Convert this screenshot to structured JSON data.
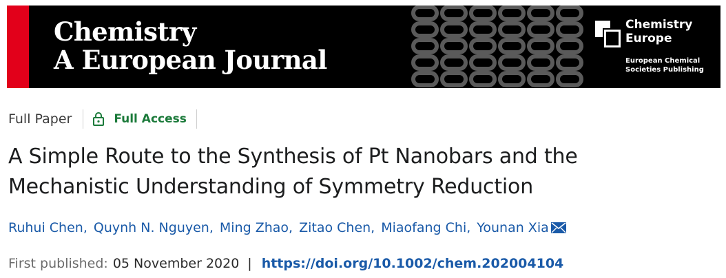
{
  "banner": {
    "journal_title_line1": "Chemistry",
    "journal_title_line2": "A European Journal",
    "publisher_name_line1": "Chemistry",
    "publisher_name_line2": "Europe",
    "publisher_sub_line1": "European Chemical",
    "publisher_sub_line2": "Societies Publishing",
    "accent_color": "#e2001a"
  },
  "article": {
    "type": "Full Paper",
    "access": "Full Access",
    "title_line1": "A Simple Route to the Synthesis of Pt Nanobars and the",
    "title_line2": "Mechanistic Understanding of Symmetry Reduction",
    "authors": [
      "Ruhui Chen",
      "Quynh N. Nguyen",
      "Ming Zhao",
      "Zitao Chen",
      "Miaofang Chi",
      "Younan Xia"
    ],
    "author_separator": ",",
    "first_published_label": "First published:",
    "first_published_date": "05 November 2020",
    "pipe": "|",
    "doi": "https://doi.org/10.1002/chem.202004104"
  },
  "icons": {
    "access": "lock-icon",
    "corresponding_author": "mail-icon"
  }
}
